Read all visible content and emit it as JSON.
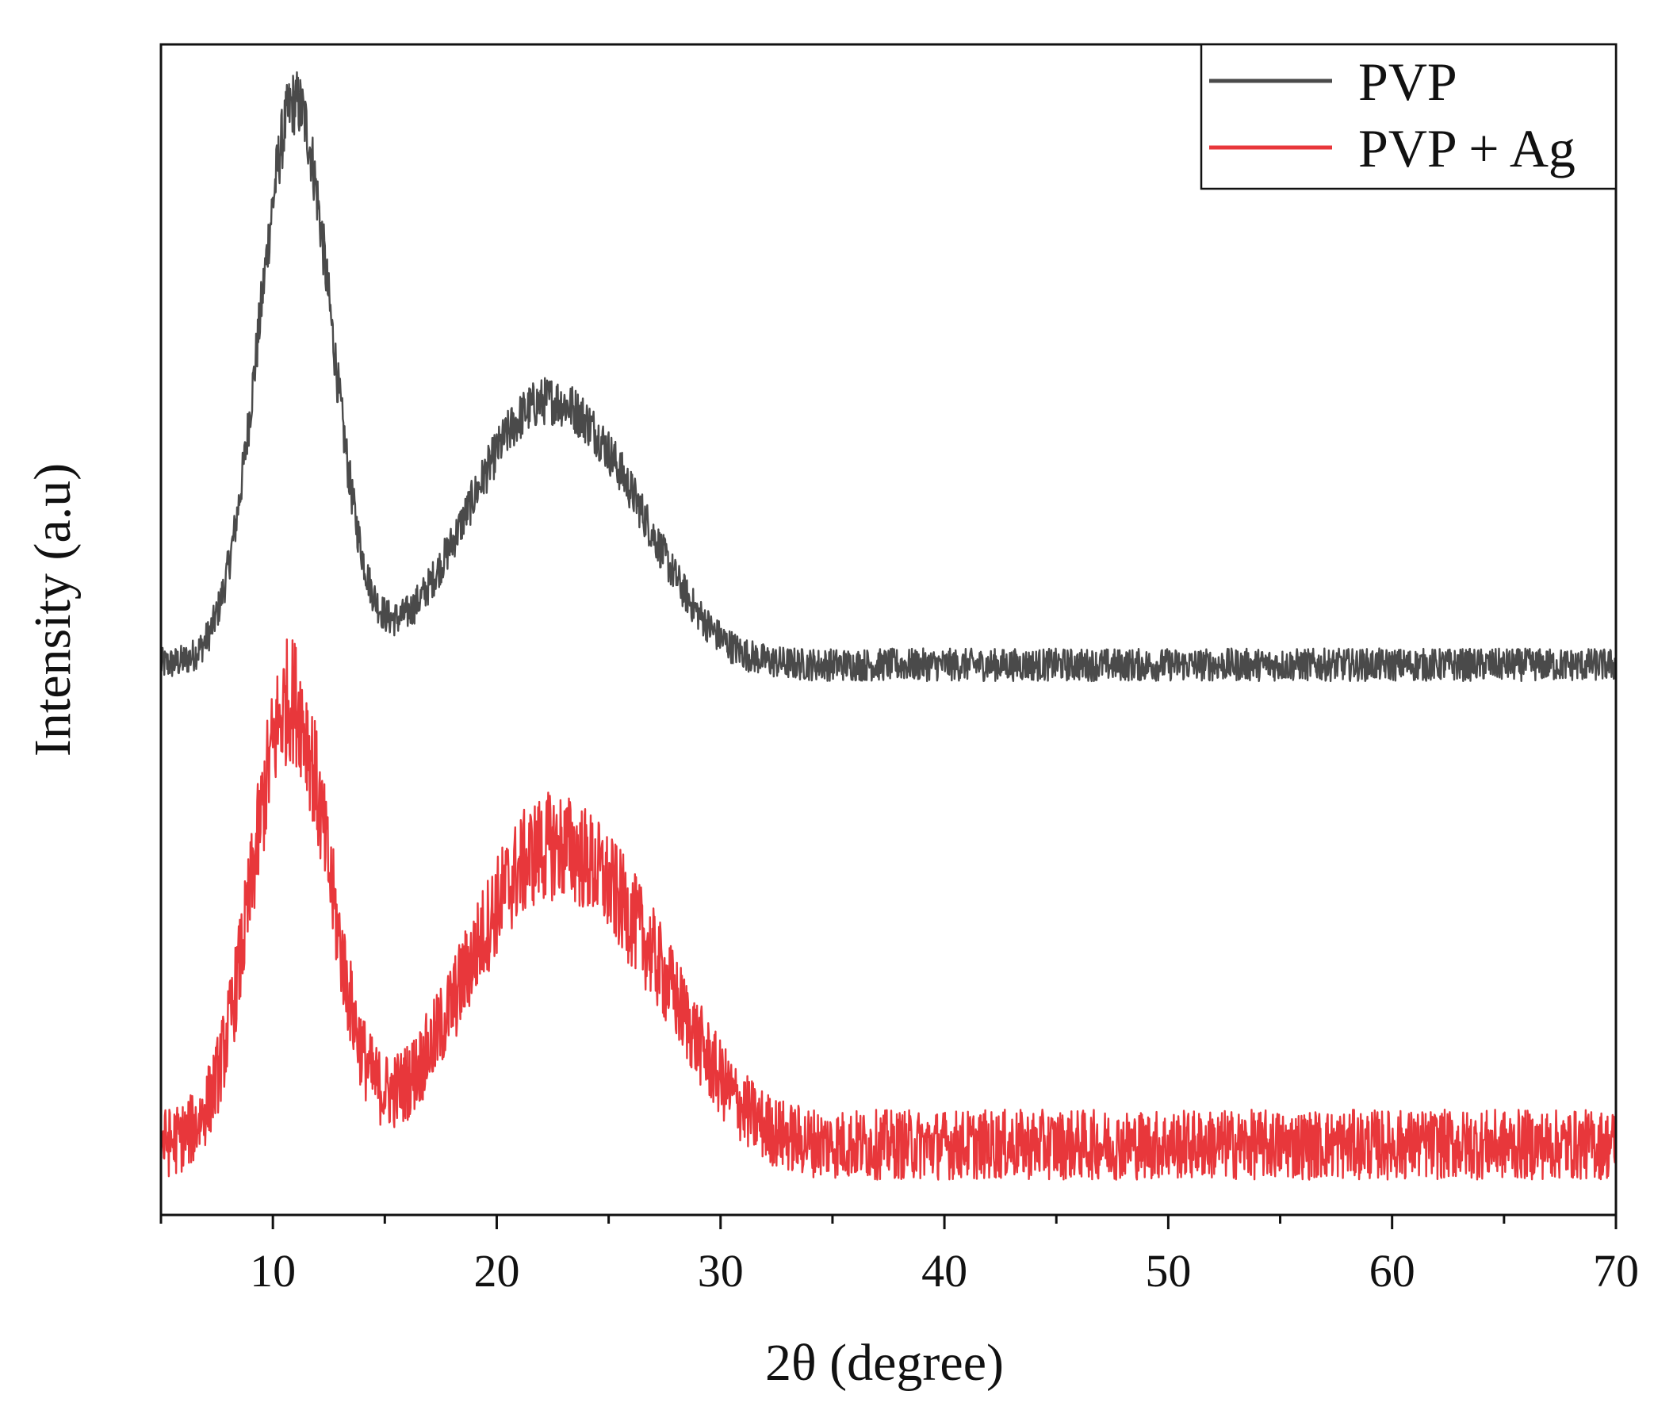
{
  "chart_data": {
    "type": "line",
    "title": "",
    "xlabel": "2θ (degree)",
    "ylabel": "Intensity (a.u)",
    "xlim": [
      5,
      70
    ],
    "ylim": [
      0,
      1
    ],
    "x_ticks": [
      10,
      20,
      30,
      40,
      50,
      60,
      70
    ],
    "x_tick_labels": [
      "10",
      "20",
      "30",
      "40",
      "50",
      "60",
      "70"
    ],
    "y_tick_labels_shown": false,
    "grid": false,
    "legend_position": "top-right",
    "series": [
      {
        "name": "PVP",
        "color": "#4a4a4a",
        "baseline": 0.47,
        "noise": 0.014,
        "peaks": [
          {
            "center": 11.0,
            "height": 0.48,
            "width": 1.6
          },
          {
            "center": 21.8,
            "height": 0.21,
            "width": 3.2
          },
          {
            "center": 26.0,
            "height": 0.06,
            "width": 2.4
          }
        ]
      },
      {
        "name": "PVP + Ag",
        "color": "#e8373b",
        "baseline": 0.06,
        "noise": 0.03,
        "peaks": [
          {
            "center": 10.8,
            "height": 0.38,
            "width": 1.7
          },
          {
            "center": 22.0,
            "height": 0.24,
            "width": 3.4
          },
          {
            "center": 27.0,
            "height": 0.08,
            "width": 2.6
          }
        ]
      }
    ]
  }
}
